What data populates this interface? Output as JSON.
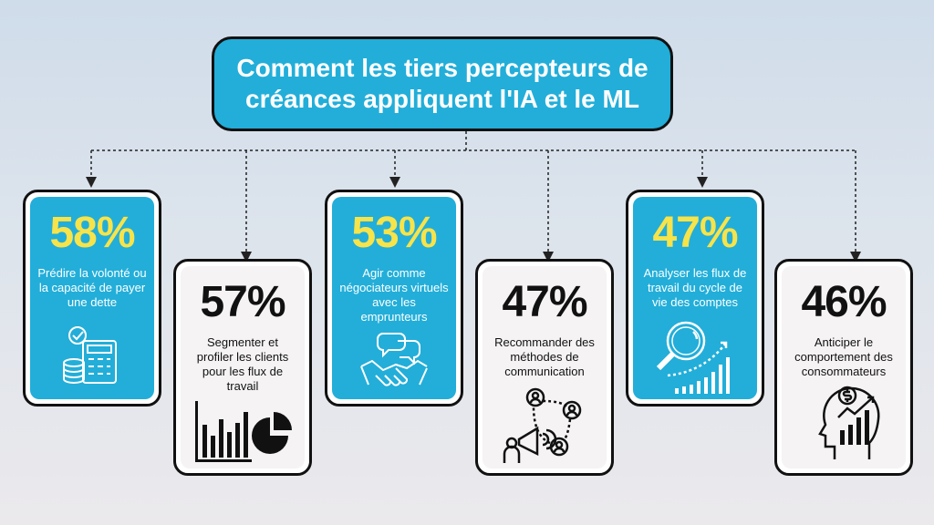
{
  "title": "Comment les tiers percepteurs de créances appliquent l'IA et le ML",
  "colors": {
    "accent_blue": "#22aed9",
    "percent_yellow": "#f7e34a",
    "card_white": "#f5f3f3"
  },
  "cards": [
    {
      "percent": "58%",
      "text": "Prédire la volonté ou la capacité de payer une dette",
      "style": "blue",
      "icon": "calculator-coins-icon"
    },
    {
      "percent": "57%",
      "text": "Segmenter et profiler les clients pour les flux de travail",
      "style": "white",
      "icon": "bar-pie-chart-icon"
    },
    {
      "percent": "53%",
      "text": "Agir comme négociateurs virtuels avec les emprunteurs",
      "style": "blue",
      "icon": "handshake-chat-icon"
    },
    {
      "percent": "47%",
      "text": "Recommander des méthodes de communication",
      "style": "white",
      "icon": "megaphone-people-icon"
    },
    {
      "percent": "47%",
      "text": "Analyser les flux de travail du cycle de vie des comptes",
      "style": "blue",
      "icon": "magnifier-growth-icon"
    },
    {
      "percent": "46%",
      "text": "Anticiper le comportement des consommateurs",
      "style": "white",
      "icon": "head-dollar-chart-icon"
    }
  ]
}
